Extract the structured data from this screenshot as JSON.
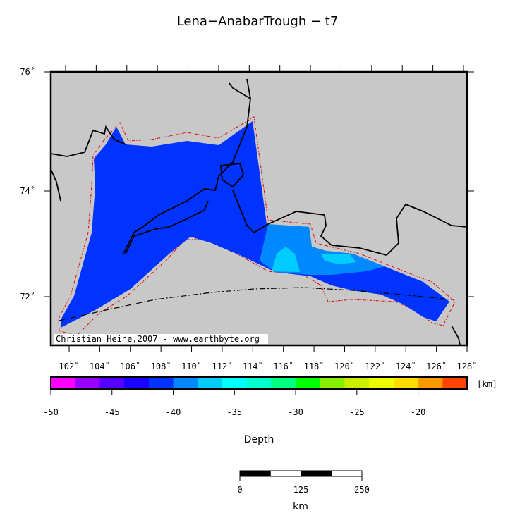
{
  "title": "Lena−AnabarTrough − t7",
  "map": {
    "lat_labels": [
      {
        "value": 76,
        "label": "76˚"
      },
      {
        "value": 74,
        "label": "74˚"
      },
      {
        "value": 72,
        "label": "72˚"
      }
    ],
    "lon_labels": [
      {
        "value": 102,
        "label": "102˚"
      },
      {
        "value": 104,
        "label": "104˚"
      },
      {
        "value": 106,
        "label": "106˚"
      },
      {
        "value": 108,
        "label": "108˚"
      },
      {
        "value": 110,
        "label": "110˚"
      },
      {
        "value": 112,
        "label": "112˚"
      },
      {
        "value": 114,
        "label": "114˚"
      },
      {
        "value": 116,
        "label": "116˚"
      },
      {
        "value": 118,
        "label": "118˚"
      },
      {
        "value": 120,
        "label": "120˚"
      },
      {
        "value": 122,
        "label": "122˚"
      },
      {
        "value": 124,
        "label": "124˚"
      },
      {
        "value": 126,
        "label": "126˚"
      },
      {
        "value": 128,
        "label": "128˚"
      }
    ],
    "credit": "Christian Heine,2007 - www.earthbyte.org"
  },
  "colorbar": {
    "label": "Depth",
    "unit": "[km]",
    "range": [
      -50,
      -16
    ],
    "ticks": [
      -50,
      -45,
      -40,
      -35,
      -30,
      -25,
      -20
    ],
    "colors": [
      "#ff00ff",
      "#9900ff",
      "#5500ff",
      "#1a00ff",
      "#0033ff",
      "#0088ff",
      "#00ccff",
      "#00ffff",
      "#00ffcc",
      "#00ff80",
      "#00ff00",
      "#88ee00",
      "#ccee00",
      "#eeff00",
      "#ffdd00",
      "#ff9900",
      "#ff4400"
    ]
  },
  "scale_bar": {
    "ticks": [
      0,
      125,
      250
    ],
    "unit": "km"
  }
}
